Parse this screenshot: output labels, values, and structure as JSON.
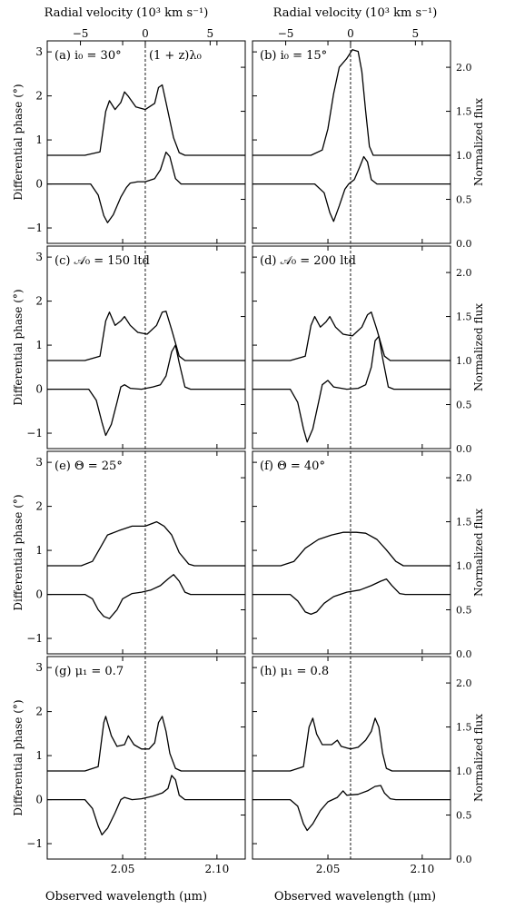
{
  "figure": {
    "top_axis_label": "Radial velocity (10³ km s⁻¹)",
    "bottom_axis_label": "Observed wavelength (μm)",
    "left_axis_label": "Differential phase (°)",
    "right_axis_label": "Normalized flux",
    "center_annotation": "(1 + z)λ₀",
    "center_wavelength": 2.062,
    "velocity_ticks": [
      -5,
      0,
      5
    ],
    "velocity_tick_labels": [
      "−5",
      "0",
      "5"
    ],
    "wavelength_ticks": [
      2.05,
      2.1
    ],
    "wavelength_tick_labels": [
      "2.05",
      "2.10"
    ],
    "phase_ticks": [
      -1,
      0,
      1,
      2,
      3
    ],
    "phase_tick_labels": [
      "−1",
      "0",
      "1",
      "2",
      "3"
    ],
    "flux_ticks": [
      0.0,
      0.5,
      1.0,
      1.5,
      2.0
    ],
    "flux_tick_labels": [
      "0.0",
      "0.5",
      "1.0",
      "1.5",
      "2.0"
    ],
    "xlim": [
      2.01,
      2.115
    ],
    "phase_ylim": [
      -1.35,
      3.25
    ],
    "flux_ylim": [
      0.0,
      2.3
    ]
  },
  "chart_data": [
    {
      "type": "line",
      "panel": "a",
      "label": "(a) i₀ = 30°",
      "flux": [
        [
          2.03,
          1.0
        ],
        [
          2.038,
          1.04
        ],
        [
          2.041,
          1.5
        ],
        [
          2.043,
          1.62
        ],
        [
          2.046,
          1.52
        ],
        [
          2.049,
          1.6
        ],
        [
          2.051,
          1.72
        ],
        [
          2.053,
          1.67
        ],
        [
          2.057,
          1.55
        ],
        [
          2.062,
          1.52
        ],
        [
          2.067,
          1.59
        ],
        [
          2.069,
          1.77
        ],
        [
          2.071,
          1.8
        ],
        [
          2.073,
          1.6
        ],
        [
          2.077,
          1.2
        ],
        [
          2.08,
          1.03
        ],
        [
          2.083,
          1.0
        ]
      ],
      "phase": [
        [
          2.033,
          0.0
        ],
        [
          2.037,
          -0.25
        ],
        [
          2.04,
          -0.72
        ],
        [
          2.042,
          -0.88
        ],
        [
          2.045,
          -0.7
        ],
        [
          2.049,
          -0.3
        ],
        [
          2.052,
          -0.08
        ],
        [
          2.054,
          0.02
        ],
        [
          2.058,
          0.05
        ],
        [
          2.062,
          0.05
        ],
        [
          2.067,
          0.12
        ],
        [
          2.07,
          0.32
        ],
        [
          2.073,
          0.72
        ],
        [
          2.075,
          0.62
        ],
        [
          2.078,
          0.12
        ],
        [
          2.081,
          0.0
        ]
      ]
    },
    {
      "type": "line",
      "panel": "b",
      "label": "(b) i₀ = 15°",
      "flux": [
        [
          2.041,
          1.0
        ],
        [
          2.047,
          1.06
        ],
        [
          2.05,
          1.3
        ],
        [
          2.053,
          1.7
        ],
        [
          2.056,
          2.0
        ],
        [
          2.06,
          2.1
        ],
        [
          2.063,
          2.2
        ],
        [
          2.066,
          2.18
        ],
        [
          2.068,
          1.95
        ],
        [
          2.07,
          1.5
        ],
        [
          2.072,
          1.1
        ],
        [
          2.074,
          1.0
        ]
      ],
      "phase": [
        [
          2.043,
          0.0
        ],
        [
          2.048,
          -0.2
        ],
        [
          2.051,
          -0.65
        ],
        [
          2.053,
          -0.85
        ],
        [
          2.056,
          -0.5
        ],
        [
          2.059,
          -0.12
        ],
        [
          2.061,
          0.0
        ],
        [
          2.064,
          0.1
        ],
        [
          2.067,
          0.4
        ],
        [
          2.069,
          0.62
        ],
        [
          2.071,
          0.5
        ],
        [
          2.073,
          0.1
        ],
        [
          2.076,
          0.0
        ]
      ]
    },
    {
      "type": "line",
      "panel": "c",
      "label": "(c) 𝒜₀ = 150 ltd",
      "flux": [
        [
          2.03,
          1.0
        ],
        [
          2.038,
          1.05
        ],
        [
          2.041,
          1.45
        ],
        [
          2.043,
          1.55
        ],
        [
          2.046,
          1.4
        ],
        [
          2.049,
          1.45
        ],
        [
          2.051,
          1.5
        ],
        [
          2.054,
          1.4
        ],
        [
          2.058,
          1.32
        ],
        [
          2.063,
          1.3
        ],
        [
          2.068,
          1.4
        ],
        [
          2.071,
          1.55
        ],
        [
          2.073,
          1.56
        ],
        [
          2.076,
          1.35
        ],
        [
          2.08,
          1.05
        ],
        [
          2.083,
          1.0
        ]
      ],
      "phase": [
        [
          2.032,
          0.0
        ],
        [
          2.036,
          -0.25
        ],
        [
          2.039,
          -0.75
        ],
        [
          2.041,
          -1.05
        ],
        [
          2.044,
          -0.8
        ],
        [
          2.047,
          -0.3
        ],
        [
          2.049,
          0.05
        ],
        [
          2.051,
          0.1
        ],
        [
          2.054,
          0.02
        ],
        [
          2.06,
          0.0
        ],
        [
          2.066,
          0.05
        ],
        [
          2.07,
          0.1
        ],
        [
          2.073,
          0.3
        ],
        [
          2.076,
          0.85
        ],
        [
          2.078,
          1.0
        ],
        [
          2.08,
          0.6
        ],
        [
          2.083,
          0.05
        ],
        [
          2.086,
          0.0
        ]
      ]
    },
    {
      "type": "line",
      "panel": "d",
      "label": "(d) 𝒜₀ = 200 ltd",
      "flux": [
        [
          2.03,
          1.0
        ],
        [
          2.038,
          1.05
        ],
        [
          2.041,
          1.4
        ],
        [
          2.043,
          1.5
        ],
        [
          2.046,
          1.38
        ],
        [
          2.049,
          1.44
        ],
        [
          2.051,
          1.5
        ],
        [
          2.054,
          1.38
        ],
        [
          2.058,
          1.3
        ],
        [
          2.063,
          1.28
        ],
        [
          2.068,
          1.38
        ],
        [
          2.071,
          1.52
        ],
        [
          2.073,
          1.55
        ],
        [
          2.076,
          1.35
        ],
        [
          2.08,
          1.05
        ],
        [
          2.083,
          1.0
        ]
      ],
      "phase": [
        [
          2.03,
          0.0
        ],
        [
          2.034,
          -0.3
        ],
        [
          2.037,
          -0.9
        ],
        [
          2.039,
          -1.2
        ],
        [
          2.042,
          -0.9
        ],
        [
          2.045,
          -0.3
        ],
        [
          2.047,
          0.1
        ],
        [
          2.05,
          0.2
        ],
        [
          2.053,
          0.05
        ],
        [
          2.06,
          0.0
        ],
        [
          2.066,
          0.02
        ],
        [
          2.07,
          0.1
        ],
        [
          2.073,
          0.5
        ],
        [
          2.075,
          1.1
        ],
        [
          2.077,
          1.2
        ],
        [
          2.079,
          0.7
        ],
        [
          2.082,
          0.05
        ],
        [
          2.085,
          0.0
        ]
      ]
    },
    {
      "type": "line",
      "panel": "e",
      "label": "(e) Θ = 25°",
      "flux": [
        [
          2.028,
          1.0
        ],
        [
          2.034,
          1.05
        ],
        [
          2.038,
          1.2
        ],
        [
          2.042,
          1.35
        ],
        [
          2.048,
          1.4
        ],
        [
          2.055,
          1.45
        ],
        [
          2.062,
          1.45
        ],
        [
          2.068,
          1.5
        ],
        [
          2.072,
          1.45
        ],
        [
          2.076,
          1.35
        ],
        [
          2.08,
          1.15
        ],
        [
          2.085,
          1.02
        ],
        [
          2.088,
          1.0
        ]
      ],
      "phase": [
        [
          2.03,
          0.0
        ],
        [
          2.034,
          -0.1
        ],
        [
          2.037,
          -0.35
        ],
        [
          2.04,
          -0.5
        ],
        [
          2.043,
          -0.55
        ],
        [
          2.047,
          -0.35
        ],
        [
          2.05,
          -0.1
        ],
        [
          2.055,
          0.02
        ],
        [
          2.06,
          0.05
        ],
        [
          2.065,
          0.1
        ],
        [
          2.07,
          0.2
        ],
        [
          2.074,
          0.35
        ],
        [
          2.077,
          0.45
        ],
        [
          2.08,
          0.3
        ],
        [
          2.083,
          0.05
        ],
        [
          2.086,
          0.0
        ]
      ]
    },
    {
      "type": "line",
      "panel": "f",
      "label": "(f) Θ = 40°",
      "flux": [
        [
          2.025,
          1.0
        ],
        [
          2.032,
          1.05
        ],
        [
          2.038,
          1.2
        ],
        [
          2.045,
          1.3
        ],
        [
          2.052,
          1.35
        ],
        [
          2.058,
          1.38
        ],
        [
          2.065,
          1.38
        ],
        [
          2.07,
          1.37
        ],
        [
          2.076,
          1.3
        ],
        [
          2.081,
          1.18
        ],
        [
          2.086,
          1.05
        ],
        [
          2.09,
          1.0
        ]
      ],
      "phase": [
        [
          2.03,
          0.0
        ],
        [
          2.034,
          -0.15
        ],
        [
          2.038,
          -0.4
        ],
        [
          2.041,
          -0.45
        ],
        [
          2.044,
          -0.4
        ],
        [
          2.048,
          -0.2
        ],
        [
          2.053,
          -0.05
        ],
        [
          2.06,
          0.05
        ],
        [
          2.067,
          0.1
        ],
        [
          2.073,
          0.2
        ],
        [
          2.078,
          0.3
        ],
        [
          2.081,
          0.35
        ],
        [
          2.084,
          0.2
        ],
        [
          2.088,
          0.02
        ],
        [
          2.091,
          0.0
        ]
      ]
    },
    {
      "type": "line",
      "panel": "g",
      "label": "(g) μ₁ = 0.7",
      "flux": [
        [
          2.03,
          1.0
        ],
        [
          2.037,
          1.05
        ],
        [
          2.04,
          1.55
        ],
        [
          2.041,
          1.62
        ],
        [
          2.044,
          1.4
        ],
        [
          2.047,
          1.28
        ],
        [
          2.051,
          1.3
        ],
        [
          2.053,
          1.4
        ],
        [
          2.056,
          1.3
        ],
        [
          2.06,
          1.25
        ],
        [
          2.064,
          1.25
        ],
        [
          2.067,
          1.32
        ],
        [
          2.069,
          1.55
        ],
        [
          2.071,
          1.62
        ],
        [
          2.073,
          1.45
        ],
        [
          2.075,
          1.2
        ],
        [
          2.078,
          1.03
        ],
        [
          2.081,
          1.0
        ]
      ],
      "phase": [
        [
          2.03,
          0.0
        ],
        [
          2.034,
          -0.2
        ],
        [
          2.037,
          -0.6
        ],
        [
          2.039,
          -0.8
        ],
        [
          2.042,
          -0.65
        ],
        [
          2.046,
          -0.3
        ],
        [
          2.049,
          0.0
        ],
        [
          2.051,
          0.05
        ],
        [
          2.055,
          0.0
        ],
        [
          2.06,
          0.02
        ],
        [
          2.066,
          0.08
        ],
        [
          2.071,
          0.15
        ],
        [
          2.074,
          0.25
        ],
        [
          2.076,
          0.55
        ],
        [
          2.078,
          0.45
        ],
        [
          2.08,
          0.1
        ],
        [
          2.083,
          0.0
        ]
      ]
    },
    {
      "type": "line",
      "panel": "h",
      "label": "(h) μ₁ = 0.8",
      "flux": [
        [
          2.03,
          1.0
        ],
        [
          2.037,
          1.05
        ],
        [
          2.04,
          1.5
        ],
        [
          2.042,
          1.6
        ],
        [
          2.044,
          1.42
        ],
        [
          2.047,
          1.3
        ],
        [
          2.052,
          1.3
        ],
        [
          2.055,
          1.35
        ],
        [
          2.057,
          1.28
        ],
        [
          2.062,
          1.25
        ],
        [
          2.066,
          1.27
        ],
        [
          2.07,
          1.35
        ],
        [
          2.073,
          1.45
        ],
        [
          2.075,
          1.6
        ],
        [
          2.077,
          1.5
        ],
        [
          2.079,
          1.2
        ],
        [
          2.081,
          1.03
        ],
        [
          2.084,
          1.0
        ]
      ],
      "phase": [
        [
          2.03,
          0.0
        ],
        [
          2.034,
          -0.15
        ],
        [
          2.037,
          -0.55
        ],
        [
          2.039,
          -0.7
        ],
        [
          2.042,
          -0.55
        ],
        [
          2.046,
          -0.25
        ],
        [
          2.05,
          -0.05
        ],
        [
          2.055,
          0.05
        ],
        [
          2.058,
          0.2
        ],
        [
          2.06,
          0.1
        ],
        [
          2.066,
          0.12
        ],
        [
          2.071,
          0.2
        ],
        [
          2.075,
          0.3
        ],
        [
          2.078,
          0.32
        ],
        [
          2.08,
          0.15
        ],
        [
          2.083,
          0.02
        ],
        [
          2.086,
          0.0
        ]
      ]
    }
  ]
}
